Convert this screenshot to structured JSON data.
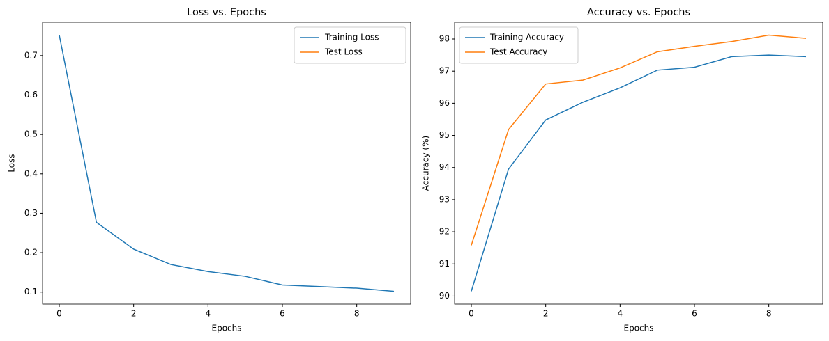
{
  "chart_data": [
    {
      "type": "line",
      "title": "Loss vs. Epochs",
      "xlabel": "Epochs",
      "ylabel": "Loss",
      "x": [
        0,
        1,
        2,
        3,
        4,
        5,
        6,
        7,
        8,
        9
      ],
      "series": [
        {
          "name": "Training Loss",
          "color": "#1f77b4",
          "values": [
            0.752,
            0.277,
            0.209,
            0.17,
            0.152,
            0.14,
            0.118,
            0.114,
            0.11,
            0.102
          ]
        },
        {
          "name": "Test Loss",
          "color": "#ff7f0e",
          "values": [
            null,
            null,
            null,
            null,
            null,
            null,
            null,
            null,
            null,
            null
          ]
        }
      ],
      "xlim": [
        -0.45,
        9.45
      ],
      "xticks": [
        0,
        2,
        4,
        6,
        8
      ],
      "ylim": [
        0.0695,
        0.7845
      ],
      "yticks": [
        0.1,
        0.2,
        0.3,
        0.4,
        0.5,
        0.6,
        0.7
      ],
      "legend": "upper right"
    },
    {
      "type": "line",
      "title": "Accuracy vs. Epochs",
      "xlabel": "Epochs",
      "ylabel": "Accuracy (%)",
      "x": [
        0,
        1,
        2,
        3,
        4,
        5,
        6,
        7,
        8,
        9
      ],
      "series": [
        {
          "name": "Training Accuracy",
          "color": "#1f77b4",
          "values": [
            90.15,
            93.95,
            95.48,
            96.03,
            96.48,
            97.03,
            97.12,
            97.45,
            97.5,
            97.45
          ]
        },
        {
          "name": "Test Accuracy",
          "color": "#ff7f0e",
          "values": [
            91.58,
            95.18,
            96.6,
            96.72,
            97.1,
            97.6,
            97.77,
            97.92,
            98.12,
            98.02
          ]
        }
      ],
      "xlim": [
        -0.45,
        9.45
      ],
      "xticks": [
        0,
        2,
        4,
        6,
        8
      ],
      "ylim": [
        89.75,
        98.52
      ],
      "yticks": [
        90,
        91,
        92,
        93,
        94,
        95,
        96,
        97,
        98
      ],
      "legend": "upper left"
    }
  ]
}
